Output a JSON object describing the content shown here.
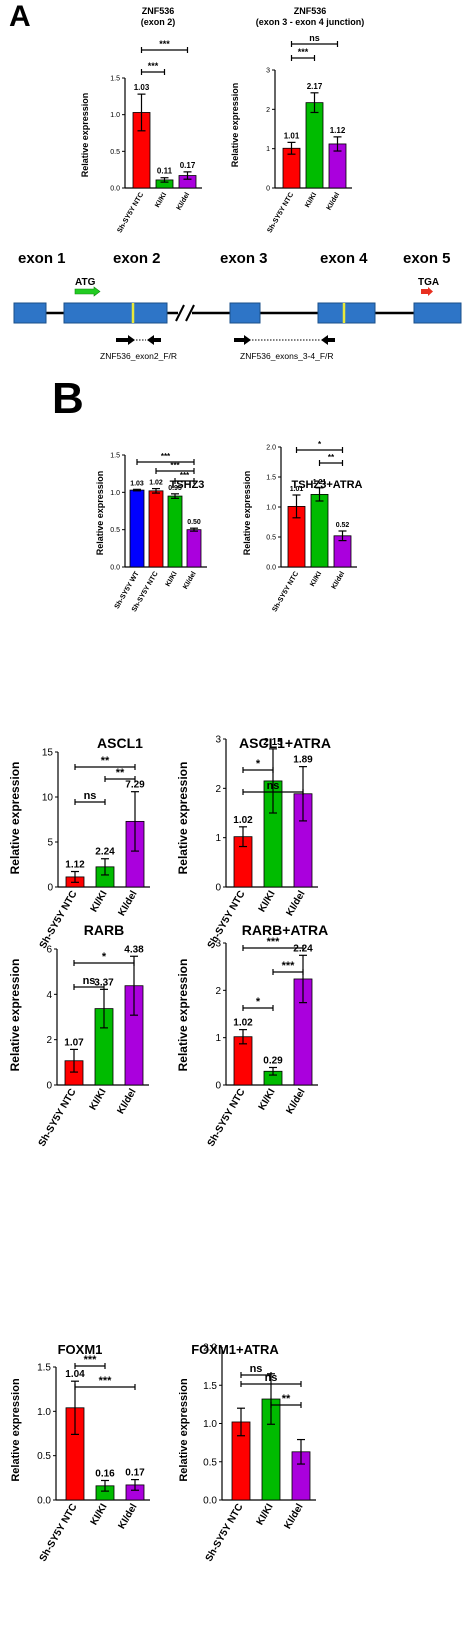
{
  "panel_labels": {
    "a": "A",
    "b": "B"
  },
  "colors": {
    "wt": "#0000ff",
    "ntc": "#ff0000",
    "kiki": "#00bb00",
    "kidel": "#aa00dd",
    "exon": "#2e75c7",
    "exon_border": "#1a4f8a",
    "mark": "#e8e83a",
    "atg": "#22cc22",
    "tga": "#e83020"
  },
  "gene": {
    "exons": [
      "exon 1",
      "exon 2",
      "exon 3",
      "exon 4",
      "exon 5"
    ],
    "start_codon": "ATG",
    "stop_codon": "TGA",
    "primer_1": "ZNF536_exon2_F/R",
    "primer_2": "ZNF536_exons_3-4_F/R"
  },
  "chart_data": [
    {
      "type": "bar",
      "title": "ZNF536\n(exon 2)",
      "ylabel": "Relative expression",
      "categories": [
        "Sh-SY5Y NTC",
        "KI/KI",
        "KI/del"
      ],
      "values": [
        1.03,
        0.11,
        0.17
      ],
      "errors": [
        0.25,
        0.03,
        0.05
      ],
      "value_labels": [
        "1.03",
        "0.11",
        "0.17"
      ],
      "ylim": [
        0,
        1.5
      ],
      "yticks": [
        "0.0",
        "0.5",
        "1.0",
        "1.5"
      ],
      "significance": [
        {
          "from": 0,
          "to": 1,
          "label": "***"
        },
        {
          "from": 0,
          "to": 2,
          "label": "***"
        }
      ]
    },
    {
      "type": "bar",
      "title": "ZNF536\n(exon 3 - exon 4 junction)",
      "ylabel": "Relative expression",
      "categories": [
        "Sh-SY5Y NTC",
        "KI/KI",
        "KI/del"
      ],
      "values": [
        1.01,
        2.17,
        1.12
      ],
      "errors": [
        0.15,
        0.25,
        0.18
      ],
      "value_labels": [
        "1.01",
        "2.17",
        "1.12"
      ],
      "ylim": [
        0,
        3
      ],
      "yticks": [
        "0",
        "1",
        "2",
        "3"
      ],
      "significance": [
        {
          "from": 0,
          "to": 1,
          "label": "***"
        },
        {
          "from": 0,
          "to": 2,
          "label": "ns"
        }
      ]
    },
    {
      "type": "bar",
      "title": "TSHZ3",
      "ylabel": "Relative expression",
      "categories": [
        "Sh-SY5Y WT",
        "Sh-SY5Y NTC",
        "KI/KI",
        "KI/del"
      ],
      "values": [
        1.03,
        1.02,
        0.95,
        0.5
      ],
      "errors": [
        0.01,
        0.03,
        0.03,
        0.02
      ],
      "value_labels": [
        "1.03",
        "1.02",
        "0.95",
        "0.50"
      ],
      "ylim": [
        0,
        1.5
      ],
      "yticks": [
        "0.0",
        "0.5",
        "1.0",
        "1.5"
      ],
      "significance": [
        {
          "from": 0,
          "to": 3,
          "label": "***"
        },
        {
          "from": 1,
          "to": 3,
          "label": "***"
        },
        {
          "from": 2,
          "to": 3,
          "label": "***"
        }
      ]
    },
    {
      "type": "bar",
      "title": "TSHZ3+ATRA",
      "ylabel": "Relative expression",
      "categories": [
        "Sh-SY5Y NTC",
        "KI/KI",
        "KI/del"
      ],
      "values": [
        1.01,
        1.21,
        0.52
      ],
      "errors": [
        0.19,
        0.11,
        0.08
      ],
      "value_labels": [
        "1.01",
        "1.21",
        "0.52"
      ],
      "ylim": [
        0,
        2.0
      ],
      "yticks": [
        "0.0",
        "0.5",
        "1.0",
        "1.5",
        "2.0"
      ],
      "significance": [
        {
          "from": 0,
          "to": 2,
          "label": "*"
        },
        {
          "from": 1,
          "to": 2,
          "label": "**"
        }
      ]
    },
    {
      "type": "bar",
      "title": "ASCL1",
      "ylabel": "Relative expression",
      "categories": [
        "Sh-SY5Y NTC",
        "KI/KI",
        "KI/del"
      ],
      "values": [
        1.12,
        2.24,
        7.29
      ],
      "errors": [
        0.6,
        0.9,
        3.3
      ],
      "value_labels": [
        "1.12",
        "2.24",
        "7.29"
      ],
      "ylim": [
        0,
        15
      ],
      "yticks": [
        "0",
        "5",
        "10",
        "15"
      ],
      "significance": [
        {
          "from": 0,
          "to": 1,
          "label": "ns"
        },
        {
          "from": 1,
          "to": 2,
          "label": "**"
        },
        {
          "from": 0,
          "to": 2,
          "label": "**"
        }
      ]
    },
    {
      "type": "bar",
      "title": "ASCL1+ATRA",
      "ylabel": "Relative expression",
      "categories": [
        "Sh-SY5Y NTC",
        "KI/KI",
        "KI/del"
      ],
      "values": [
        1.02,
        2.15,
        1.89
      ],
      "errors": [
        0.2,
        0.65,
        0.55
      ],
      "value_labels": [
        "1.02",
        "2.15",
        "1.89"
      ],
      "ylim": [
        0,
        3
      ],
      "yticks": [
        "0",
        "1",
        "2",
        "3"
      ],
      "significance": [
        {
          "from": 0,
          "to": 1,
          "label": "*"
        },
        {
          "from": 0,
          "to": 2,
          "label": "ns"
        }
      ]
    },
    {
      "type": "bar",
      "title": "RARB",
      "ylabel": "Relative expression",
      "categories": [
        "Sh-SY5Y NTC",
        "KI/KI",
        "KI/del"
      ],
      "values": [
        1.07,
        3.37,
        4.38
      ],
      "errors": [
        0.5,
        0.85,
        1.3
      ],
      "value_labels": [
        "1.07",
        "3.37",
        "4.38"
      ],
      "ylim": [
        0,
        6
      ],
      "yticks": [
        "0",
        "2",
        "4",
        "6"
      ],
      "significance": [
        {
          "from": 0,
          "to": 1,
          "label": "ns"
        },
        {
          "from": 0,
          "to": 2,
          "label": "*"
        }
      ]
    },
    {
      "type": "bar",
      "title": "RARB+ATRA",
      "ylabel": "Relative expression",
      "categories": [
        "Sh-SY5Y NTC",
        "KI/KI",
        "KI/del"
      ],
      "values": [
        1.02,
        0.29,
        2.24
      ],
      "errors": [
        0.15,
        0.08,
        0.5
      ],
      "value_labels": [
        "1.02",
        "0.29",
        "2.24"
      ],
      "ylim": [
        0,
        3
      ],
      "yticks": [
        "0",
        "1",
        "2",
        "3"
      ],
      "significance": [
        {
          "from": 0,
          "to": 1,
          "label": "*"
        },
        {
          "from": 1,
          "to": 2,
          "label": "***"
        },
        {
          "from": 0,
          "to": 2,
          "label": "***"
        }
      ]
    },
    {
      "type": "bar",
      "title": "FOXM1",
      "ylabel": "Relative expression",
      "categories": [
        "Sh-SY5Y NTC",
        "KI/KI",
        "KI/del"
      ],
      "values": [
        1.04,
        0.16,
        0.17
      ],
      "errors": [
        0.3,
        0.06,
        0.06
      ],
      "value_labels": [
        "1.04",
        "0.16",
        "0.17"
      ],
      "ylim": [
        0,
        1.5
      ],
      "yticks": [
        "0.0",
        "0.5",
        "1.0",
        "1.5"
      ],
      "significance": [
        {
          "from": 0,
          "to": 1,
          "label": "***"
        },
        {
          "from": 0,
          "to": 2,
          "label": "***"
        }
      ]
    },
    {
      "type": "bar",
      "title": "FOXM1+ATRA",
      "ylabel": "Relative expression",
      "categories": [
        "Sh-SY5Y NTC",
        "KI/KI",
        "KI/del"
      ],
      "values": [
        1.02,
        1.32,
        0.63
      ],
      "errors": [
        0.18,
        0.33,
        0.16
      ],
      "value_labels": [],
      "ylim": [
        0,
        2.0
      ],
      "yticks": [
        "0.0",
        "0.5",
        "1.0",
        "1.5",
        "2.0"
      ],
      "significance": [
        {
          "from": 0,
          "to": 1,
          "label": "ns"
        },
        {
          "from": 1,
          "to": 2,
          "label": "**"
        },
        {
          "from": 0,
          "to": 2,
          "label": "ns"
        }
      ]
    }
  ]
}
